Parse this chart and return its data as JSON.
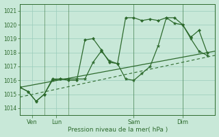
{
  "background_color": "#c8e8d8",
  "grid_color": "#99ccbb",
  "line_color": "#2d6a2d",
  "title": "Pression niveau de la mer( hPa )",
  "ylabel_ticks": [
    1014,
    1015,
    1016,
    1017,
    1018,
    1019,
    1020,
    1021
  ],
  "ylim": [
    1013.5,
    1021.5
  ],
  "xlim": [
    0,
    24
  ],
  "xtick_positions": [
    1.5,
    4.5,
    14,
    20
  ],
  "xtick_labels": [
    "Ven",
    "Lun",
    "Sam",
    "Dim"
  ],
  "vlines_x": [
    3,
    6,
    14,
    20
  ],
  "straight_line1": {
    "x": [
      0,
      24
    ],
    "y": [
      1015.5,
      1018.1
    ]
  },
  "straight_line2": {
    "x": [
      0,
      24
    ],
    "y": [
      1014.8,
      1017.8
    ]
  },
  "jagged_diamonds": {
    "x": [
      0,
      1,
      2,
      3,
      4,
      5,
      6,
      7,
      8,
      9,
      10,
      11,
      12,
      13,
      14,
      15,
      16,
      17,
      18,
      19,
      20,
      21,
      22,
      23
    ],
    "y": [
      1015.5,
      1015.2,
      1014.5,
      1015.0,
      1016.1,
      1016.1,
      1016.0,
      1016.0,
      1018.9,
      1019.0,
      1018.2,
      1017.3,
      1017.2,
      1020.5,
      1020.5,
      1020.3,
      1020.4,
      1020.3,
      1020.5,
      1020.5,
      1020.0,
      1019.1,
      1019.6,
      1018.0
    ]
  },
  "jagged_stars": {
    "x": [
      0,
      1,
      2,
      3,
      4,
      5,
      6,
      7,
      8,
      9,
      10,
      11,
      12,
      13,
      14,
      15,
      16,
      17,
      18,
      19,
      20,
      21,
      22,
      23
    ],
    "y": [
      1015.5,
      1015.2,
      1014.5,
      1015.0,
      1016.0,
      1016.1,
      1016.1,
      1016.1,
      1016.1,
      1017.3,
      1018.1,
      1017.4,
      1017.2,
      1016.1,
      1016.0,
      1016.5,
      1017.0,
      1018.5,
      1020.5,
      1020.1,
      1020.0,
      1019.0,
      1018.1,
      1017.8
    ]
  }
}
